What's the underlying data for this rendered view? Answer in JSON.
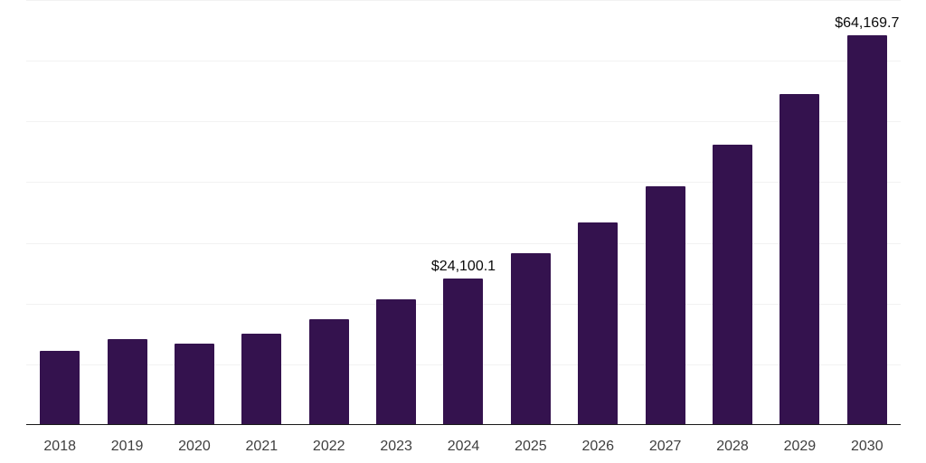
{
  "chart_data": {
    "type": "bar",
    "title": "",
    "xlabel": "",
    "ylabel": "",
    "categories": [
      "2018",
      "2019",
      "2020",
      "2021",
      "2022",
      "2023",
      "2024",
      "2025",
      "2026",
      "2027",
      "2028",
      "2029",
      "2030"
    ],
    "values": [
      12150,
      14100,
      13350,
      15000,
      17500,
      20650,
      24100.1,
      28250,
      33300,
      39300,
      46150,
      54500,
      64169.7
    ],
    "data_labels": [
      "",
      "",
      "",
      "",
      "",
      "",
      "$24,100.1",
      "",
      "",
      "",
      "",
      "",
      "$64,169.7"
    ],
    "ylim": [
      0,
      70000
    ],
    "gridline_step": 10000,
    "grid": "horizontal",
    "legend": "none",
    "bar_color": "#34124e",
    "axis_line_color": "#1a1a1a",
    "gridline_color": "#f2f2f2",
    "tick_label_color": "#3f3f3f",
    "data_label_color": "#0a0a0a",
    "background_color": "#ffffff"
  }
}
